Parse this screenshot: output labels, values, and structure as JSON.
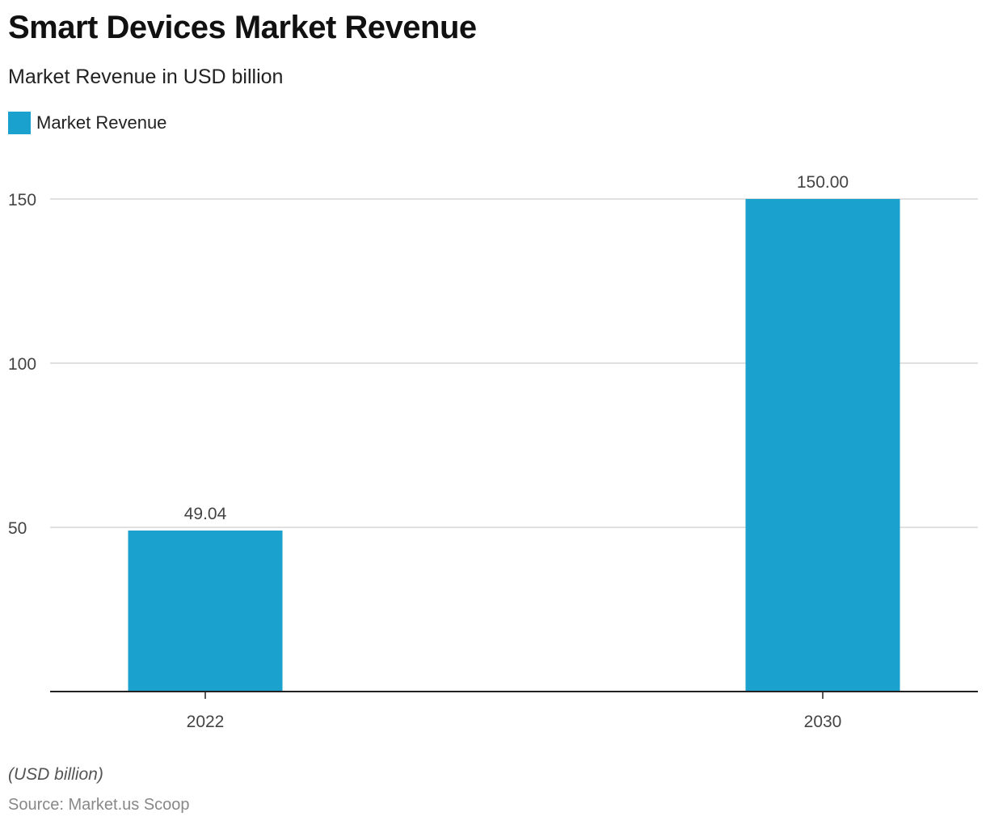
{
  "chart_data": {
    "type": "bar",
    "title": "Smart Devices Market Revenue",
    "subtitle": "Market Revenue in USD billion",
    "categories": [
      "2022",
      "2030"
    ],
    "series": [
      {
        "name": "Market Revenue",
        "values": [
          49.04,
          150.0
        ],
        "color": "#1AA1CE"
      }
    ],
    "value_labels": [
      "49.04",
      "150.00"
    ],
    "xlabel": "",
    "ylabel": "",
    "ylim": [
      0,
      150
    ],
    "yticks": [
      50,
      100,
      150
    ],
    "grid": true,
    "legend": "top-left"
  },
  "footer": {
    "note": "(USD billion)",
    "source": "Source: Market.us Scoop"
  }
}
